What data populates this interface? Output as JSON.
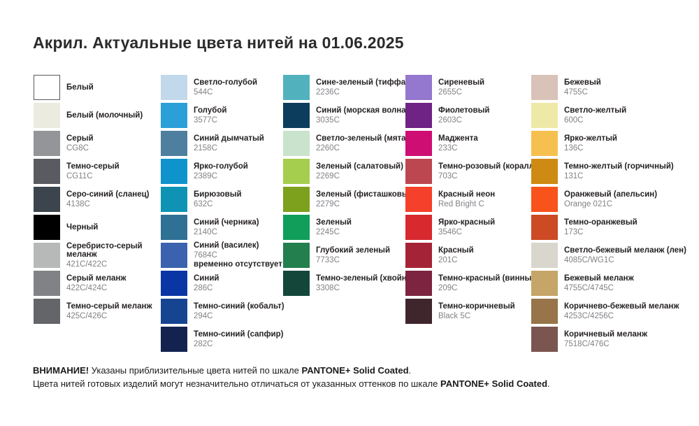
{
  "title": "Акрил. Актуальные цвета нитей на 01.06.2025",
  "columns": [
    {
      "items": [
        {
          "name": "Белый",
          "code": "",
          "hex": "#FFFFFF"
        },
        {
          "name": "Белый (молочный)",
          "code": "",
          "hex": "#EBEBDF"
        },
        {
          "name": "Серый",
          "code": "CG8C",
          "hex": "#939598"
        },
        {
          "name": "Темно-серый",
          "code": "CG11C",
          "hex": "#595B60"
        },
        {
          "name": "Серо-синий (сланец)",
          "code": "4138C",
          "hex": "#3C444D"
        },
        {
          "name": "Черный",
          "code": "",
          "hex": "#000000"
        },
        {
          "name": "Серебристо-серый меланж",
          "code": "421C/422C",
          "hex": "#B7B9B8"
        },
        {
          "name": "Серый меланж",
          "code": "422C/424C",
          "hex": "#808285"
        },
        {
          "name": "Темно-серый меланж",
          "code": "425C/426C",
          "hex": "#636569"
        }
      ]
    },
    {
      "items": [
        {
          "name": "Светло-голубой",
          "code": "544C",
          "hex": "#C2D8EB"
        },
        {
          "name": "Голубой",
          "code": "3577C",
          "hex": "#2B9FD8"
        },
        {
          "name": "Синий дымчатый",
          "code": "2158C",
          "hex": "#4E7F9E"
        },
        {
          "name": "Ярко-голубой",
          "code": "2389C",
          "hex": "#0E93CC"
        },
        {
          "name": "Бирюзовый",
          "code": "632C",
          "hex": "#0E93B4"
        },
        {
          "name": "Синий (черника)",
          "code": "2140C",
          "hex": "#2F7095"
        },
        {
          "name": "Синий (василек)",
          "code": "7684C",
          "hex": "#3A62AE",
          "note": "временно отсутствует"
        },
        {
          "name": "Синий",
          "code": "286C",
          "hex": "#0A35A5"
        },
        {
          "name": "Темно-синий (кобальт)",
          "code": "294C",
          "hex": "#174491"
        },
        {
          "name": "Темно-синий (сапфир)",
          "code": "282C",
          "hex": "#14224F"
        }
      ]
    },
    {
      "items": [
        {
          "name": "Сине-зеленый (тиффани)",
          "code": "2236C",
          "hex": "#51B2BE"
        },
        {
          "name": "Синий (морская волна)",
          "code": "3035C",
          "hex": "#0C3D5C"
        },
        {
          "name": "Светло-зеленый (мята)",
          "code": "2260C",
          "hex": "#C9E3CC"
        },
        {
          "name": "Зеленый (салатовый)",
          "code": "2269C",
          "hex": "#A5CE4E"
        },
        {
          "name": "Зеленый (фисташковый)",
          "code": "2279C",
          "hex": "#7DA11C"
        },
        {
          "name": "Зеленый",
          "code": "2245C",
          "hex": "#119E5B"
        },
        {
          "name": "Глубокий зеленый",
          "code": "7733C",
          "hex": "#237F4E"
        },
        {
          "name": "Темно-зеленый (хвойный)",
          "code": "3308C",
          "hex": "#14473A"
        }
      ]
    },
    {
      "items": [
        {
          "name": "Сиреневый",
          "code": "2655C",
          "hex": "#9477CE"
        },
        {
          "name": "Фиолетовый",
          "code": "2603C",
          "hex": "#6F2384"
        },
        {
          "name": "Маджента",
          "code": "233C",
          "hex": "#CE0E73"
        },
        {
          "name": "Темно-розовый (коралл)",
          "code": "703C",
          "hex": "#BC4750"
        },
        {
          "name": "Красный неон",
          "code": "Red Bright C",
          "hex": "#F5402B"
        },
        {
          "name": "Ярко-красный",
          "code": "3546C",
          "hex": "#D8292F"
        },
        {
          "name": "Красный",
          "code": "201C",
          "hex": "#A52337"
        },
        {
          "name": "Темно-красный (винный)",
          "code": "209C",
          "hex": "#7D2440"
        },
        {
          "name": "Темно-коричневый",
          "code": "Black 5C",
          "hex": "#3F262D"
        }
      ]
    },
    {
      "items": [
        {
          "name": "Бежевый",
          "code": "4755C",
          "hex": "#D9C2B8"
        },
        {
          "name": "Светло-желтый",
          "code": "600C",
          "hex": "#EFE9A8"
        },
        {
          "name": "Ярко-желтый",
          "code": "136C",
          "hex": "#F6C04F"
        },
        {
          "name": "Темно-желтый (горчичный)",
          "code": "131C",
          "hex": "#CE8A12"
        },
        {
          "name": "Оранжевый (апельсин)",
          "code": "Orange 021C",
          "hex": "#F8531B"
        },
        {
          "name": "Темно-оранжевый",
          "code": "173C",
          "hex": "#CC4A24"
        },
        {
          "name": "Светло-бежевый меланж (лен)",
          "code": "4085C/WG1C",
          "hex": "#D9D6CD"
        },
        {
          "name": "Бежевый меланж",
          "code": "4755C/4745C",
          "hex": "#C5A568"
        },
        {
          "name": "Коричнево-бежевый меланж",
          "code": "4253C/4256C",
          "hex": "#97744A"
        },
        {
          "name": "Коричневый меланж",
          "code": "7518C/476C",
          "hex": "#7B5650"
        }
      ]
    }
  ],
  "footer": {
    "warning_label": "ВНИМАНИЕ!",
    "line1_text": " Указаны приблизительные цвета нитей по шкале ",
    "line1_bold": "PANTONE+ Solid Coated",
    "line1_period": ".",
    "line2_text": "Цвета нитей готовых изделий могут незначительно отличаться от указанных оттенков по шкале ",
    "line2_bold": "PANTONE+ Solid Coated",
    "line2_period": "."
  }
}
